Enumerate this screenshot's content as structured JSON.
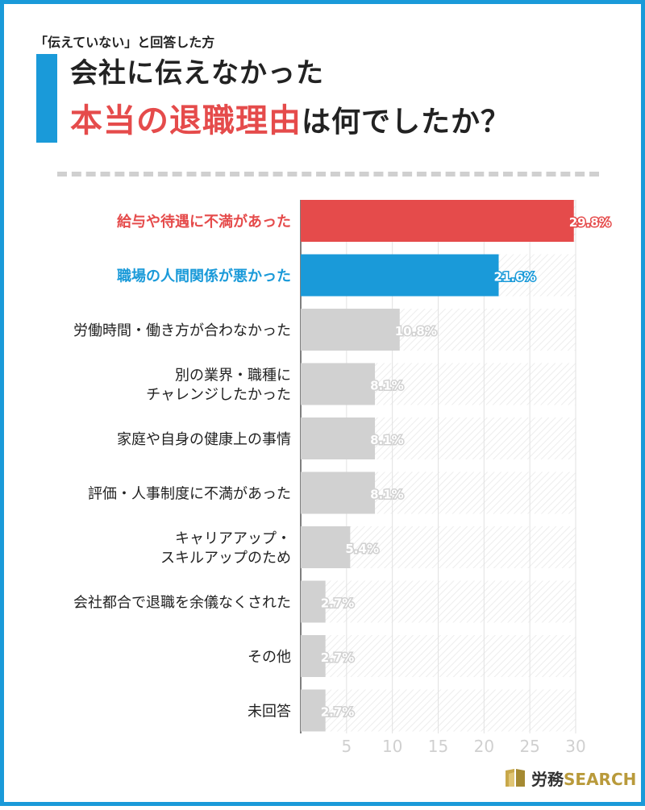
{
  "header": {
    "subtitle": "「伝えていない」と回答した方",
    "title_line1": "会社に伝えなかった",
    "title_highlight": "本当の退職理由",
    "title_rest": "は何でしたか？"
  },
  "colors": {
    "accent_blue": "#1a9ad9",
    "highlight_red": "#e54b4b",
    "bar_gray": "#d1d1d1"
  },
  "chart_data": {
    "type": "bar",
    "orientation": "horizontal",
    "categories": [
      [
        "給与や待遇に不満があった"
      ],
      [
        "職場の人間関係が悪かった"
      ],
      [
        "労働時間・働き方が合わなかった"
      ],
      [
        "別の業界・職種に",
        "チャレンジしたかった"
      ],
      [
        "家庭や自身の健康上の事情"
      ],
      [
        "評価・人事制度に不満があった"
      ],
      [
        "キャリアアップ・",
        "スキルアップのため"
      ],
      [
        "会社都合で退職を余儀なくされた"
      ],
      [
        "その他"
      ],
      [
        "未回答"
      ]
    ],
    "values": [
      29.8,
      21.6,
      10.8,
      8.1,
      8.1,
      8.1,
      5.4,
      2.7,
      2.7,
      2.7
    ],
    "labels": [
      "29.8%",
      "21.6%",
      "10.8%",
      "8.1%",
      "8.1%",
      "8.1%",
      "5.4%",
      "2.7%",
      "2.7%",
      "2.7%"
    ],
    "bar_colors": [
      "#e54b4b",
      "#1a9ad9",
      "#d1d1d1",
      "#d1d1d1",
      "#d1d1d1",
      "#d1d1d1",
      "#d1d1d1",
      "#d1d1d1",
      "#d1d1d1",
      "#d1d1d1"
    ],
    "label_colors": [
      "#e54b4b",
      "#1a9ad9",
      "#222222",
      "#222222",
      "#222222",
      "#222222",
      "#222222",
      "#222222",
      "#222222",
      "#222222"
    ],
    "xlim": [
      0,
      30
    ],
    "xticks": [
      5,
      10,
      15,
      20,
      25,
      30
    ],
    "grid": true,
    "unit": "%"
  },
  "branding": {
    "name_jp": "労務",
    "name_en": "SEARCH"
  }
}
